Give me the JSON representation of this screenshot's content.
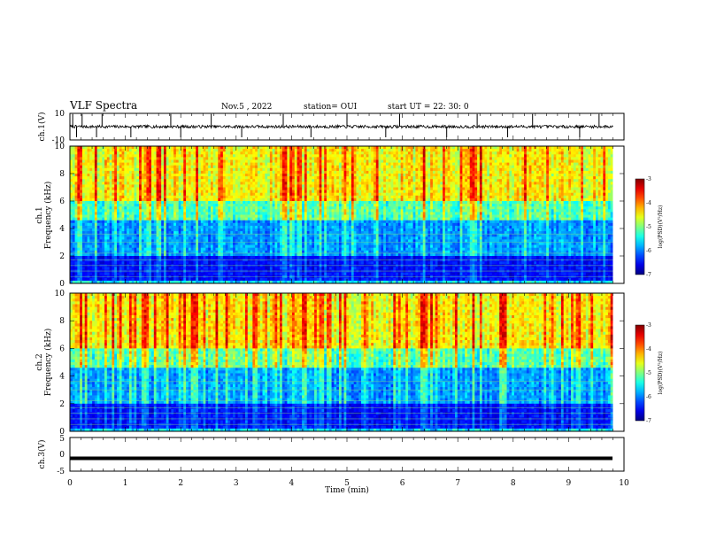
{
  "header": {
    "title": "VLF Spectra",
    "date": "Nov.5  , 2022",
    "station": "station= OUI",
    "start": "start  UT  =   22: 30: 0"
  },
  "chart_data": [
    {
      "type": "line",
      "name": "ch1-waveform",
      "ylabel": "ch.1(V)",
      "ylim": [
        -10,
        10
      ],
      "yticks": [
        "10",
        "-10"
      ],
      "xlim": [
        0,
        10
      ],
      "baseline": 0,
      "spike_times_min": [
        0.05,
        0.12,
        0.22,
        0.48,
        0.58,
        1.1,
        1.82,
        2.0,
        2.55,
        3.1,
        3.85,
        4.35,
        5.0,
        5.7,
        5.95,
        6.8,
        7.35,
        7.9,
        8.35,
        9.2,
        9.55
      ]
    },
    {
      "type": "heatmap",
      "name": "ch1-spectrogram",
      "ylabel_line1": "ch.1",
      "ylabel_line2": "Frequency  (kHz)",
      "ylim": [
        0,
        10
      ],
      "yticks": [
        "0",
        "2",
        "4",
        "6",
        "8",
        "10"
      ],
      "xlim": [
        0,
        9.8
      ],
      "colorbar": {
        "label": "log(PSD)(V²/Hz)",
        "range": [
          -7,
          -3
        ],
        "ticks": [
          "-3",
          "-4",
          "-5",
          "-6",
          "-7"
        ]
      }
    },
    {
      "type": "heatmap",
      "name": "ch2-spectrogram",
      "ylabel_line1": "ch.2",
      "ylabel_line2": "Frequency  (kHz)",
      "ylim": [
        0,
        10
      ],
      "yticks": [
        "0",
        "2",
        "4",
        "6",
        "8",
        "10"
      ],
      "xlim": [
        0,
        9.8
      ],
      "colorbar": {
        "label": "log(PSD)(V²/Hz)",
        "range": [
          -7,
          -3
        ],
        "ticks": [
          "-3",
          "-4",
          "-5",
          "-6",
          "-7"
        ]
      }
    },
    {
      "type": "line",
      "name": "ch3-waveform",
      "ylabel": "ch.3(V)",
      "ylim": [
        -5,
        5
      ],
      "yticks": [
        "5",
        "0",
        "-5"
      ],
      "xlim": [
        0,
        10
      ],
      "constant_value": -1.2
    }
  ],
  "xaxis": {
    "label": "Time  (min)",
    "ticks": [
      "0",
      "1",
      "2",
      "3",
      "4",
      "5",
      "6",
      "7",
      "8",
      "9",
      "10"
    ]
  }
}
